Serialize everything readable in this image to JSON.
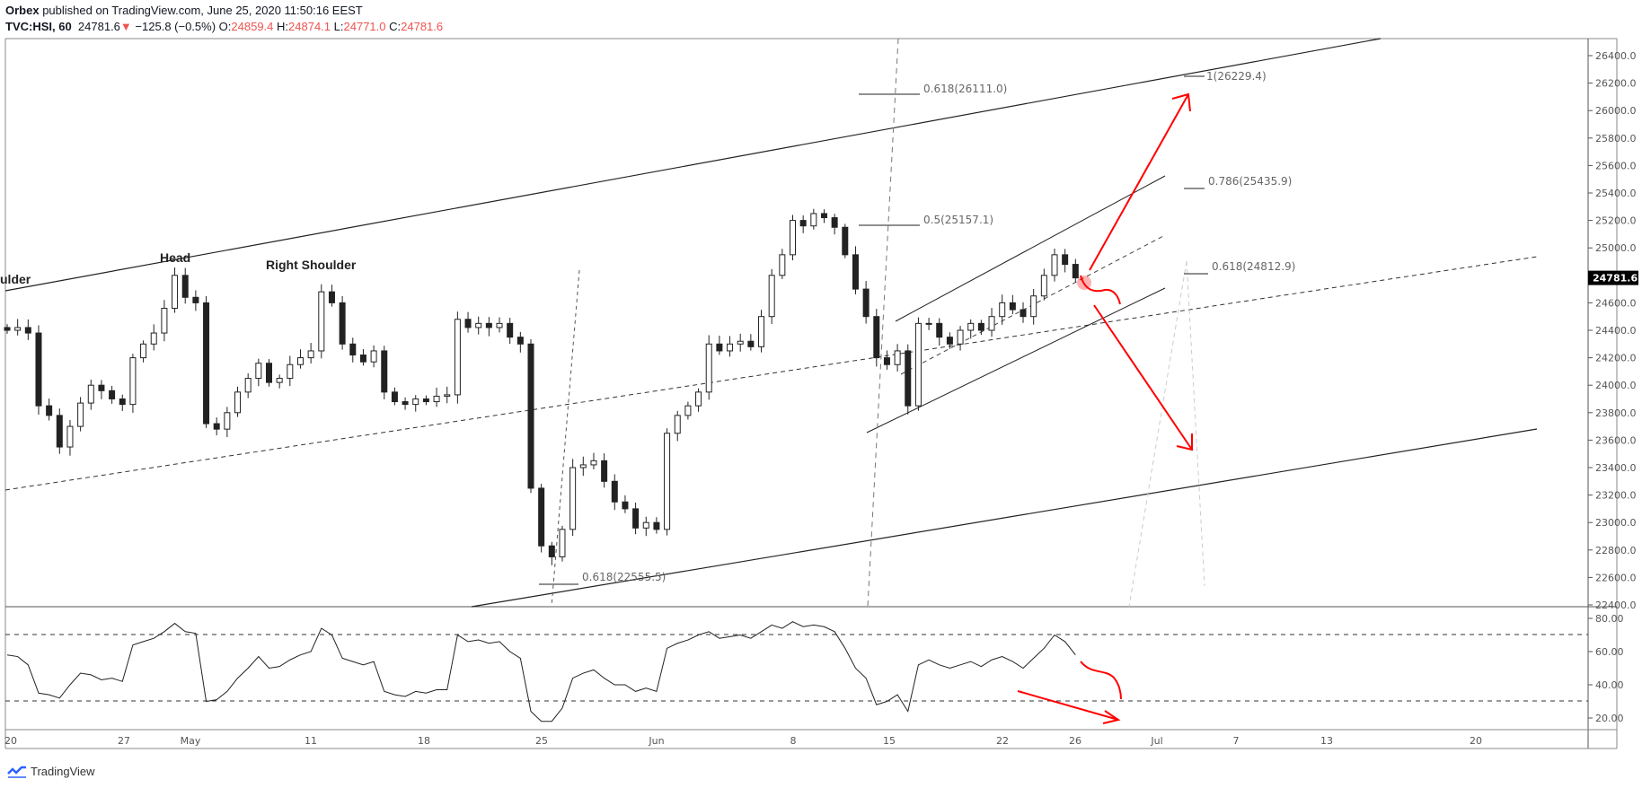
{
  "header": {
    "author": "Orbex",
    "published": "published on TradingView.com, June 25, 2020 11:50:16 EEST",
    "symbol": "TVC:HSI, 60",
    "last": "24781.6",
    "change": "−125.8 (−0.5%)",
    "o_label": "O:",
    "o": "24859.4",
    "h_label": "H:",
    "h": "24874.1",
    "l_label": "L:",
    "l": "24771.0",
    "c_label": "C:",
    "c": "24781.6"
  },
  "colors": {
    "up_body": "#ffffff",
    "down_body": "#222222",
    "drawing_red": "#ff0000",
    "price_tag": "#000000"
  },
  "chart_data": [
    {
      "type": "candlestick",
      "title": "",
      "ylim": [
        22400,
        26400
      ],
      "y_ticks": [
        "26400.0",
        "26200.0",
        "26000.0",
        "25800.0",
        "25600.0",
        "25400.0",
        "25200.0",
        "25000.0",
        "24600.0",
        "24400.0",
        "24200.0",
        "24000.0",
        "23800.0",
        "23600.0",
        "23400.0",
        "23200.0",
        "23000.0",
        "22800.0",
        "22600.0",
        "22400.0"
      ],
      "last_price_label": "24781.6",
      "x_ticks": [
        "20",
        "27",
        "May",
        "11",
        "18",
        "25",
        "Jun",
        "8",
        "15",
        "22",
        "26",
        "Jul",
        "7",
        "13",
        "20"
      ],
      "closes": [
        24400,
        24420,
        24380,
        23850,
        23780,
        23550,
        23700,
        23870,
        24000,
        23960,
        23900,
        23860,
        24200,
        24300,
        24380,
        24560,
        24800,
        24640,
        24600,
        23720,
        23680,
        23800,
        23950,
        24050,
        24160,
        24020,
        24050,
        24150,
        24200,
        24250,
        24680,
        24600,
        24300,
        24220,
        24170,
        24250,
        23950,
        23880,
        23860,
        23900,
        23880,
        23920,
        23930,
        24480,
        24420,
        24450,
        24420,
        24450,
        24350,
        24300,
        23250,
        22830,
        22750,
        22950,
        23400,
        23420,
        23450,
        23300,
        23150,
        23100,
        22960,
        23000,
        22950,
        23650,
        23780,
        23850,
        23950,
        24300,
        24250,
        24300,
        24320,
        24280,
        24500,
        24800,
        24950,
        25200,
        25160,
        25250,
        25220,
        25150,
        24950,
        24700,
        24500,
        24200,
        24150,
        24250,
        23850,
        24450,
        24450,
        24350,
        24300,
        24400,
        24450,
        24400,
        24500,
        24600,
        24550,
        24500,
        24650,
        24800,
        24950,
        24880,
        24781.6
      ],
      "annotations": [
        "ulder",
        "Head",
        "Right Shoulder"
      ],
      "fib_levels": [
        "1(26229.4)",
        "0.618(26111.0)",
        "0.786(25435.9)",
        "0.5(25157.1)",
        "0.618(24812.9)",
        "0.618(22555.5)"
      ]
    },
    {
      "type": "line",
      "title": "",
      "ylim": [
        10,
        90
      ],
      "y_ticks": [
        "80.00",
        "60.00",
        "40.00",
        "20.00"
      ],
      "levels": [
        70,
        30
      ],
      "values": [
        58,
        57,
        52,
        35,
        34,
        32,
        40,
        47,
        46,
        43,
        44,
        42,
        64,
        66,
        68,
        72,
        77,
        72,
        71,
        30,
        31,
        36,
        44,
        50,
        57,
        50,
        51,
        55,
        58,
        60,
        74,
        70,
        56,
        54,
        52,
        54,
        36,
        34,
        33,
        36,
        35,
        37,
        37,
        70,
        66,
        67,
        65,
        66,
        60,
        56,
        24,
        18,
        18,
        26,
        44,
        47,
        49,
        44,
        40,
        40,
        36,
        38,
        36,
        62,
        65,
        67,
        70,
        72,
        68,
        69,
        70,
        68,
        72,
        76,
        74,
        78,
        75,
        76,
        75,
        72,
        62,
        50,
        44,
        28,
        30,
        34,
        24,
        52,
        55,
        52,
        50,
        52,
        54,
        51,
        55,
        57,
        54,
        50,
        56,
        62,
        70,
        66,
        58
      ]
    }
  ],
  "footer": {
    "brand": "TradingView"
  }
}
